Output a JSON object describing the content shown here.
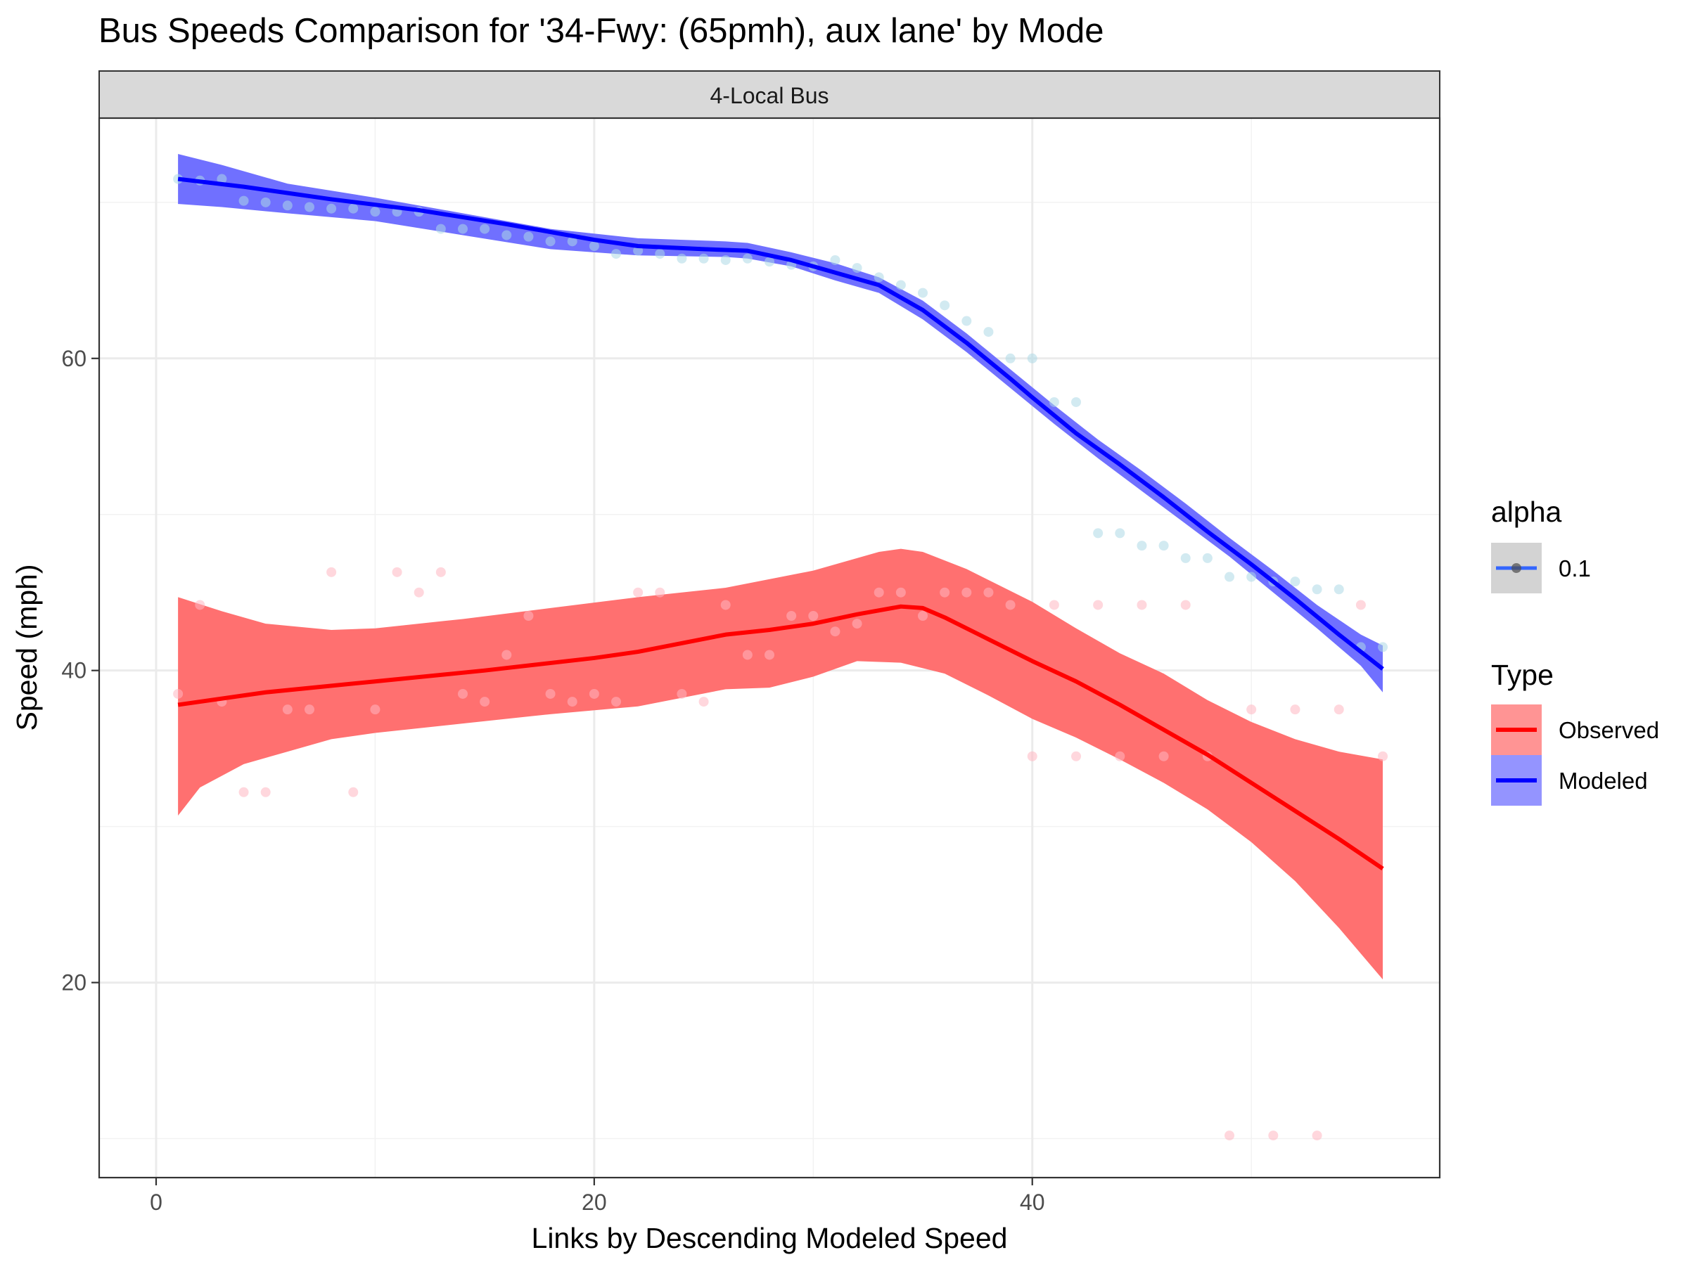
{
  "chart_data": {
    "type": "scatter",
    "title": "Bus Speeds Comparison for '34-Fwy: (65pmh), aux lane' by Mode",
    "facet_label": "4-Local Bus",
    "xlabel": "Links by Descending Modeled Speed",
    "ylabel": "Speed (mph)",
    "xlim": [
      -2.6,
      58.6
    ],
    "ylim": [
      7.5,
      75.4
    ],
    "x_ticks": [
      0,
      20,
      40
    ],
    "x_tick_labels": [
      "0",
      "20",
      "40"
    ],
    "y_ticks": [
      20,
      40,
      60
    ],
    "y_tick_labels": [
      "20",
      "40",
      "60"
    ],
    "grid": true,
    "legend_position": "right",
    "legends": [
      {
        "title": "alpha",
        "entries": [
          {
            "label": "0.1",
            "color": "#3366FF"
          }
        ]
      },
      {
        "title": "Type",
        "entries": [
          {
            "label": "Observed",
            "color": "#FF0000",
            "fill": "#FF7070"
          },
          {
            "label": "Modeled",
            "color": "#0000FF",
            "fill": "#7070FF"
          }
        ]
      }
    ],
    "series": [
      {
        "name": "Observed",
        "point_color": "#FFB6C1",
        "line_color": "#FF0000",
        "band_color": "#FF7070",
        "points": [
          [
            1,
            38.5
          ],
          [
            2,
            44.2
          ],
          [
            3,
            38
          ],
          [
            4,
            32.2
          ],
          [
            5,
            32.2
          ],
          [
            6,
            37.5
          ],
          [
            7,
            37.5
          ],
          [
            8,
            46.3
          ],
          [
            9,
            32.2
          ],
          [
            10,
            37.5
          ],
          [
            11,
            46.3
          ],
          [
            12,
            45
          ],
          [
            13,
            46.3
          ],
          [
            14,
            38.5
          ],
          [
            15,
            38
          ],
          [
            16,
            41
          ],
          [
            17,
            43.5
          ],
          [
            18,
            38.5
          ],
          [
            19,
            38
          ],
          [
            20,
            38.5
          ],
          [
            21,
            38
          ],
          [
            22,
            45
          ],
          [
            23,
            45
          ],
          [
            24,
            38.5
          ],
          [
            25,
            38
          ],
          [
            26,
            44.2
          ],
          [
            27,
            41
          ],
          [
            28,
            41
          ],
          [
            29,
            43.5
          ],
          [
            30,
            43.5
          ],
          [
            31,
            42.5
          ],
          [
            32,
            43
          ],
          [
            33,
            45
          ],
          [
            34,
            45
          ],
          [
            35,
            43.5
          ],
          [
            36,
            45
          ],
          [
            37,
            45
          ],
          [
            38,
            45
          ],
          [
            39,
            44.2
          ],
          [
            40,
            34.5
          ],
          [
            41,
            44.2
          ],
          [
            42,
            34.5
          ],
          [
            43,
            44.2
          ],
          [
            44,
            34.5
          ],
          [
            45,
            44.2
          ],
          [
            46,
            34.5
          ],
          [
            47,
            44.2
          ],
          [
            48,
            34.5
          ],
          [
            49,
            10.2
          ],
          [
            50,
            37.5
          ],
          [
            51,
            10.2
          ],
          [
            52,
            37.5
          ],
          [
            53,
            10.2
          ],
          [
            54,
            37.5
          ],
          [
            55,
            44.2
          ],
          [
            56,
            34.5
          ]
        ],
        "fit": [
          [
            1,
            37.8
          ],
          [
            5,
            38.6
          ],
          [
            10,
            39.3
          ],
          [
            15,
            40
          ],
          [
            20,
            40.8
          ],
          [
            22,
            41.2
          ],
          [
            26,
            42.3
          ],
          [
            28,
            42.6
          ],
          [
            30,
            43
          ],
          [
            32,
            43.6
          ],
          [
            34,
            44.1
          ],
          [
            35,
            44
          ],
          [
            36,
            43.4
          ],
          [
            38,
            42
          ],
          [
            40,
            40.6
          ],
          [
            42,
            39.3
          ],
          [
            44,
            37.8
          ],
          [
            46,
            36.2
          ],
          [
            48,
            34.6
          ],
          [
            50,
            32.8
          ],
          [
            52,
            31
          ],
          [
            54,
            29.2
          ],
          [
            56,
            27.3
          ]
        ],
        "band_upper": [
          [
            1,
            44.7
          ],
          [
            3,
            43.8
          ],
          [
            5,
            43
          ],
          [
            8,
            42.6
          ],
          [
            10,
            42.7
          ],
          [
            14,
            43.3
          ],
          [
            18,
            44
          ],
          [
            22,
            44.7
          ],
          [
            26,
            45.3
          ],
          [
            30,
            46.4
          ],
          [
            33,
            47.6
          ],
          [
            34,
            47.8
          ],
          [
            35,
            47.6
          ],
          [
            37,
            46.5
          ],
          [
            40,
            44.4
          ],
          [
            42,
            42.7
          ],
          [
            44,
            41.1
          ],
          [
            46,
            39.8
          ],
          [
            48,
            38.1
          ],
          [
            50,
            36.7
          ],
          [
            52,
            35.6
          ],
          [
            54,
            34.8
          ],
          [
            56,
            34.3
          ]
        ],
        "band_lower": [
          [
            1,
            30.7
          ],
          [
            2,
            32.5
          ],
          [
            4,
            34
          ],
          [
            6,
            34.8
          ],
          [
            8,
            35.6
          ],
          [
            10,
            36
          ],
          [
            14,
            36.6
          ],
          [
            18,
            37.2
          ],
          [
            22,
            37.7
          ],
          [
            26,
            38.8
          ],
          [
            28,
            38.9
          ],
          [
            30,
            39.6
          ],
          [
            32,
            40.6
          ],
          [
            34,
            40.5
          ],
          [
            36,
            39.8
          ],
          [
            38,
            38.4
          ],
          [
            40,
            36.9
          ],
          [
            42,
            35.7
          ],
          [
            44,
            34.3
          ],
          [
            46,
            32.8
          ],
          [
            48,
            31.1
          ],
          [
            50,
            29
          ],
          [
            52,
            26.5
          ],
          [
            54,
            23.5
          ],
          [
            56,
            20.2
          ]
        ]
      },
      {
        "name": "Modeled",
        "point_color": "#ADD8E6",
        "line_color": "#0000FF",
        "band_color": "#7070FF",
        "points": [
          [
            1,
            71.5
          ],
          [
            2,
            71.4
          ],
          [
            3,
            71.5
          ],
          [
            4,
            70.1
          ],
          [
            5,
            70
          ],
          [
            6,
            69.8
          ],
          [
            7,
            69.7
          ],
          [
            8,
            69.6
          ],
          [
            9,
            69.6
          ],
          [
            10,
            69.4
          ],
          [
            11,
            69.4
          ],
          [
            12,
            69.4
          ],
          [
            13,
            68.3
          ],
          [
            14,
            68.3
          ],
          [
            15,
            68.3
          ],
          [
            16,
            67.9
          ],
          [
            17,
            67.8
          ],
          [
            18,
            67.5
          ],
          [
            19,
            67.5
          ],
          [
            20,
            67.2
          ],
          [
            21,
            66.7
          ],
          [
            22,
            66.9
          ],
          [
            23,
            66.7
          ],
          [
            24,
            66.4
          ],
          [
            25,
            66.4
          ],
          [
            26,
            66.3
          ],
          [
            27,
            66.4
          ],
          [
            28,
            66.2
          ],
          [
            29,
            66
          ],
          [
            30,
            65.9
          ],
          [
            31,
            66.3
          ],
          [
            32,
            65.8
          ],
          [
            33,
            65.2
          ],
          [
            34,
            64.7
          ],
          [
            35,
            64.2
          ],
          [
            36,
            63.4
          ],
          [
            37,
            62.4
          ],
          [
            38,
            61.7
          ],
          [
            39,
            60
          ],
          [
            40,
            60
          ],
          [
            41,
            57.2
          ],
          [
            42,
            57.2
          ],
          [
            43,
            48.8
          ],
          [
            44,
            48.8
          ],
          [
            45,
            48
          ],
          [
            46,
            48
          ],
          [
            47,
            47.2
          ],
          [
            48,
            47.2
          ],
          [
            49,
            46
          ],
          [
            50,
            46
          ],
          [
            51,
            45.7
          ],
          [
            52,
            45.7
          ],
          [
            53,
            45.2
          ],
          [
            54,
            45.2
          ],
          [
            55,
            41.5
          ],
          [
            56,
            41.5
          ]
        ],
        "fit": [
          [
            1,
            71.5
          ],
          [
            4,
            71
          ],
          [
            8,
            70.2
          ],
          [
            12,
            69.5
          ],
          [
            16,
            68.6
          ],
          [
            20,
            67.6
          ],
          [
            22,
            67.2
          ],
          [
            25,
            67
          ],
          [
            27,
            66.9
          ],
          [
            29,
            66.3
          ],
          [
            31,
            65.5
          ],
          [
            33,
            64.7
          ],
          [
            35,
            63.1
          ],
          [
            37,
            61
          ],
          [
            39,
            58.7
          ],
          [
            40,
            57.5
          ],
          [
            42,
            55.2
          ],
          [
            44,
            53.2
          ],
          [
            46,
            51.1
          ],
          [
            48,
            48.9
          ],
          [
            50,
            46.8
          ],
          [
            52,
            44.6
          ],
          [
            54,
            42.3
          ],
          [
            56,
            40.1
          ]
        ],
        "band_upper": [
          [
            1,
            73.1
          ],
          [
            3,
            72.4
          ],
          [
            6,
            71.2
          ],
          [
            10,
            70.3
          ],
          [
            14,
            69.3
          ],
          [
            18,
            68.3
          ],
          [
            22,
            67.7
          ],
          [
            26,
            67.5
          ],
          [
            27,
            67.4
          ],
          [
            29,
            66.8
          ],
          [
            31,
            66.1
          ],
          [
            33,
            65.2
          ],
          [
            35,
            63.7
          ],
          [
            37,
            61.6
          ],
          [
            39,
            59.3
          ],
          [
            41,
            57
          ],
          [
            43,
            54.8
          ],
          [
            45,
            52.8
          ],
          [
            47,
            50.7
          ],
          [
            49,
            48.5
          ],
          [
            51,
            46.4
          ],
          [
            53,
            44.2
          ],
          [
            55,
            42.3
          ],
          [
            56,
            41.6
          ]
        ],
        "band_lower": [
          [
            1,
            69.9
          ],
          [
            3,
            69.7
          ],
          [
            6,
            69.3
          ],
          [
            10,
            68.8
          ],
          [
            14,
            67.9
          ],
          [
            18,
            67
          ],
          [
            22,
            66.6
          ],
          [
            26,
            66.5
          ],
          [
            27,
            66.4
          ],
          [
            29,
            65.9
          ],
          [
            31,
            65
          ],
          [
            33,
            64.2
          ],
          [
            35,
            62.5
          ],
          [
            37,
            60.4
          ],
          [
            39,
            58.1
          ],
          [
            41,
            55.8
          ],
          [
            43,
            53.6
          ],
          [
            45,
            51.5
          ],
          [
            47,
            49.4
          ],
          [
            49,
            47.3
          ],
          [
            51,
            45
          ],
          [
            53,
            42.7
          ],
          [
            55,
            40.3
          ],
          [
            56,
            38.6
          ]
        ]
      }
    ]
  }
}
